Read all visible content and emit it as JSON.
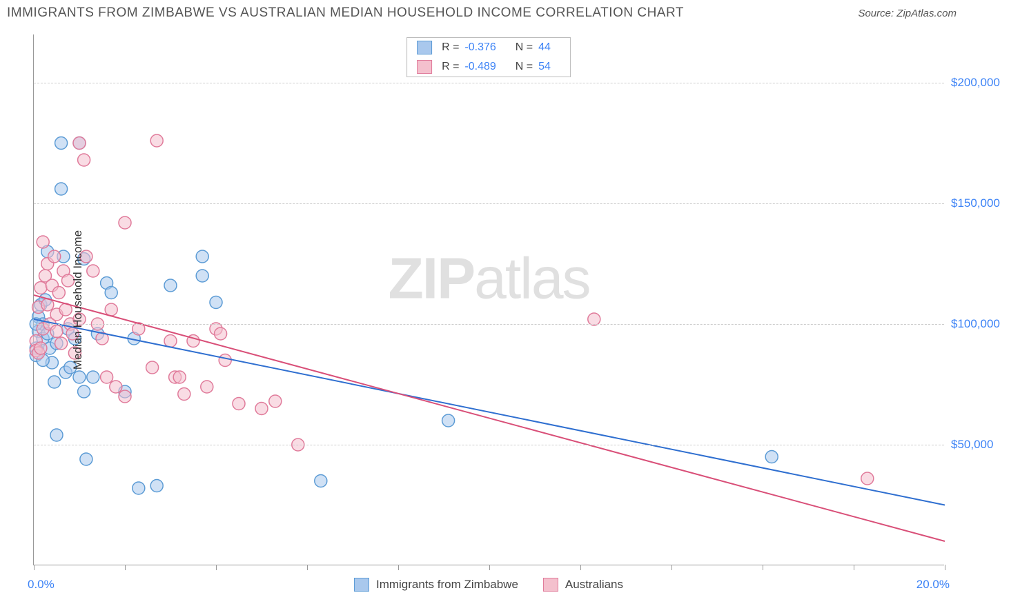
{
  "header": {
    "title": "IMMIGRANTS FROM ZIMBABWE VS AUSTRALIAN MEDIAN HOUSEHOLD INCOME CORRELATION CHART",
    "source": "Source: ZipAtlas.com"
  },
  "watermark": {
    "prefix": "ZIP",
    "suffix": "atlas"
  },
  "chart": {
    "type": "scatter",
    "xlabel_min": "0.0%",
    "xlabel_max": "20.0%",
    "ylabel": "Median Household Income",
    "xlim": [
      0,
      20
    ],
    "ylim": [
      0,
      220000
    ],
    "xtick_positions": [
      0,
      2,
      4,
      6,
      8,
      10,
      12,
      14,
      16,
      18,
      20
    ],
    "yticks": [
      {
        "value": 50000,
        "label": "$50,000"
      },
      {
        "value": 100000,
        "label": "$100,000"
      },
      {
        "value": 150000,
        "label": "$150,000"
      },
      {
        "value": 200000,
        "label": "$200,000"
      }
    ],
    "background_color": "#ffffff",
    "grid_color": "#cccccc",
    "axis_color": "#999999",
    "tick_label_color": "#3b82f6",
    "marker_radius": 9,
    "marker_opacity": 0.55,
    "line_width": 2,
    "series": [
      {
        "key": "zimbabwe",
        "label": "Immigrants from Zimbabwe",
        "color_fill": "#a9c8ed",
        "color_stroke": "#5b9bd5",
        "line_color": "#2f6fd0",
        "r_value": "-0.376",
        "n_value": "44",
        "regression": {
          "x1": 0,
          "y1": 102000,
          "x2": 20,
          "y2": 25000
        },
        "points": [
          [
            0.05,
            90000
          ],
          [
            0.05,
            87000
          ],
          [
            0.1,
            97000
          ],
          [
            0.1,
            103000
          ],
          [
            0.15,
            108000
          ],
          [
            0.2,
            94000
          ],
          [
            0.2,
            100000
          ],
          [
            0.25,
            110000
          ],
          [
            0.3,
            130000
          ],
          [
            0.3,
            96000
          ],
          [
            0.35,
            90000
          ],
          [
            0.4,
            84000
          ],
          [
            0.45,
            76000
          ],
          [
            0.5,
            92000
          ],
          [
            0.5,
            54000
          ],
          [
            0.6,
            175000
          ],
          [
            0.6,
            156000
          ],
          [
            0.65,
            128000
          ],
          [
            0.7,
            80000
          ],
          [
            0.75,
            98000
          ],
          [
            0.8,
            82000
          ],
          [
            0.9,
            94000
          ],
          [
            1.0,
            78000
          ],
          [
            1.0,
            175000
          ],
          [
            1.1,
            127000
          ],
          [
            1.1,
            72000
          ],
          [
            1.15,
            44000
          ],
          [
            1.3,
            78000
          ],
          [
            1.4,
            96000
          ],
          [
            1.6,
            117000
          ],
          [
            1.7,
            113000
          ],
          [
            2.0,
            72000
          ],
          [
            2.2,
            94000
          ],
          [
            2.3,
            32000
          ],
          [
            2.7,
            33000
          ],
          [
            3.0,
            116000
          ],
          [
            3.7,
            128000
          ],
          [
            3.7,
            120000
          ],
          [
            4.0,
            109000
          ],
          [
            6.3,
            35000
          ],
          [
            9.1,
            60000
          ],
          [
            16.2,
            45000
          ],
          [
            0.2,
            85000
          ],
          [
            0.05,
            100000
          ]
        ]
      },
      {
        "key": "australians",
        "label": "Australians",
        "color_fill": "#f4c0cd",
        "color_stroke": "#e07a9a",
        "line_color": "#d94f78",
        "r_value": "-0.489",
        "n_value": "54",
        "regression": {
          "x1": 0,
          "y1": 112000,
          "x2": 20,
          "y2": 10000
        },
        "points": [
          [
            0.05,
            93000
          ],
          [
            0.05,
            89000
          ],
          [
            0.1,
            88000
          ],
          [
            0.1,
            107000
          ],
          [
            0.15,
            115000
          ],
          [
            0.2,
            98000
          ],
          [
            0.2,
            134000
          ],
          [
            0.25,
            120000
          ],
          [
            0.3,
            108000
          ],
          [
            0.3,
            125000
          ],
          [
            0.35,
            100000
          ],
          [
            0.4,
            116000
          ],
          [
            0.45,
            128000
          ],
          [
            0.5,
            97000
          ],
          [
            0.5,
            104000
          ],
          [
            0.55,
            113000
          ],
          [
            0.6,
            92000
          ],
          [
            0.65,
            122000
          ],
          [
            0.7,
            106000
          ],
          [
            0.75,
            118000
          ],
          [
            0.8,
            100000
          ],
          [
            0.85,
            96000
          ],
          [
            0.9,
            88000
          ],
          [
            1.0,
            175000
          ],
          [
            1.0,
            102000
          ],
          [
            1.1,
            168000
          ],
          [
            1.15,
            128000
          ],
          [
            1.3,
            122000
          ],
          [
            1.4,
            100000
          ],
          [
            1.5,
            94000
          ],
          [
            1.6,
            78000
          ],
          [
            1.7,
            106000
          ],
          [
            1.8,
            74000
          ],
          [
            2.0,
            142000
          ],
          [
            2.0,
            70000
          ],
          [
            2.3,
            98000
          ],
          [
            2.6,
            82000
          ],
          [
            2.7,
            176000
          ],
          [
            3.0,
            93000
          ],
          [
            3.1,
            78000
          ],
          [
            3.2,
            78000
          ],
          [
            3.3,
            71000
          ],
          [
            3.5,
            93000
          ],
          [
            3.8,
            74000
          ],
          [
            4.0,
            98000
          ],
          [
            4.1,
            96000
          ],
          [
            4.2,
            85000
          ],
          [
            4.5,
            67000
          ],
          [
            5.0,
            65000
          ],
          [
            5.3,
            68000
          ],
          [
            5.8,
            50000
          ],
          [
            12.3,
            102000
          ],
          [
            18.3,
            36000
          ],
          [
            0.15,
            90000
          ]
        ]
      }
    ]
  }
}
